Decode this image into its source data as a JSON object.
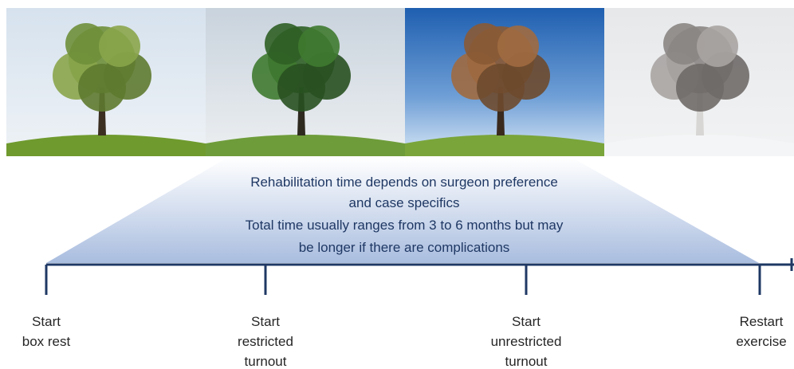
{
  "note": {
    "lines": [
      "Rehabilitation time depends on surgeon preference",
      "and case specifics",
      "Total time usually ranges from 3 to 6 months but may",
      "be longer if there are complications"
    ]
  },
  "milestones": [
    {
      "lines": [
        "Start",
        "box rest"
      ]
    },
    {
      "lines": [
        "Start",
        "restricted",
        "turnout"
      ]
    },
    {
      "lines": [
        "Start",
        "unrestricted",
        "turnout"
      ]
    },
    {
      "lines": [
        "Restart",
        "exercise"
      ]
    }
  ]
}
